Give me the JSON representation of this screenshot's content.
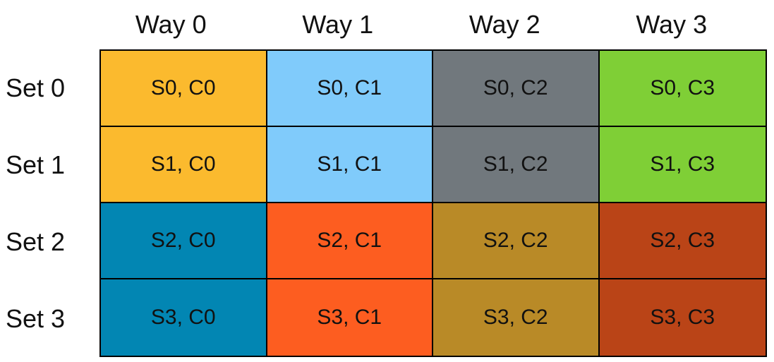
{
  "ways": [
    "Way 0",
    "Way 1",
    "Way 2",
    "Way 3"
  ],
  "sets": [
    "Set 0",
    "Set 1",
    "Set 2",
    "Set 3"
  ],
  "cells": [
    [
      {
        "label": "S0, C0",
        "color": "#FBBA2E"
      },
      {
        "label": "S0, C1",
        "color": "#80CBFB"
      },
      {
        "label": "S0, C2",
        "color": "#71787D"
      },
      {
        "label": "S0, C3",
        "color": "#7FCF36"
      }
    ],
    [
      {
        "label": "S1, C0",
        "color": "#FBBA2E"
      },
      {
        "label": "S1, C1",
        "color": "#80CBFB"
      },
      {
        "label": "S1, C2",
        "color": "#71787D"
      },
      {
        "label": "S1, C3",
        "color": "#7FCF36"
      }
    ],
    [
      {
        "label": "S2, C0",
        "color": "#0286B3"
      },
      {
        "label": "S2, C1",
        "color": "#FD5D20"
      },
      {
        "label": "S2, C2",
        "color": "#B98A27"
      },
      {
        "label": "S2, C3",
        "color": "#BA4417"
      }
    ],
    [
      {
        "label": "S3, C0",
        "color": "#0286B3"
      },
      {
        "label": "S3, C1",
        "color": "#FD5D20"
      },
      {
        "label": "S3, C2",
        "color": "#B98A27"
      },
      {
        "label": "S3, C3",
        "color": "#BA4417"
      }
    ]
  ]
}
